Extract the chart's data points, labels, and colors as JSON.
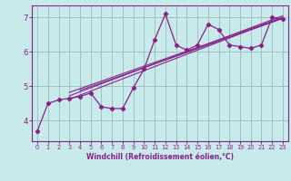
{
  "title": "",
  "xlabel": "Windchill (Refroidissement éolien,°C)",
  "bg_color": "#c8eaea",
  "line_color": "#882288",
  "grid_color": "#99bbbb",
  "xlim": [
    -0.5,
    23.5
  ],
  "ylim": [
    3.4,
    7.35
  ],
  "xticks": [
    0,
    1,
    2,
    3,
    4,
    5,
    6,
    7,
    8,
    9,
    10,
    11,
    12,
    13,
    14,
    15,
    16,
    17,
    18,
    19,
    20,
    21,
    22,
    23
  ],
  "yticks": [
    4,
    5,
    6,
    7
  ],
  "data_x": [
    0,
    1,
    2,
    3,
    4,
    5,
    6,
    7,
    8,
    9,
    10,
    11,
    12,
    13,
    14,
    15,
    16,
    17,
    18,
    19,
    20,
    21,
    22,
    23
  ],
  "data_y": [
    3.7,
    4.5,
    4.6,
    4.65,
    4.7,
    4.8,
    4.4,
    4.35,
    4.35,
    4.95,
    5.5,
    6.35,
    7.1,
    6.2,
    6.05,
    6.2,
    6.8,
    6.65,
    6.2,
    6.15,
    6.1,
    6.2,
    7.0,
    6.95
  ],
  "reg_lines": [
    {
      "x": [
        3,
        23
      ],
      "y": [
        4.62,
        7.0
      ]
    },
    {
      "x": [
        3,
        23
      ],
      "y": [
        4.72,
        7.05
      ]
    },
    {
      "x": [
        3,
        23
      ],
      "y": [
        4.82,
        7.0
      ]
    },
    {
      "x": [
        4,
        23
      ],
      "y": [
        4.88,
        6.97
      ]
    }
  ]
}
